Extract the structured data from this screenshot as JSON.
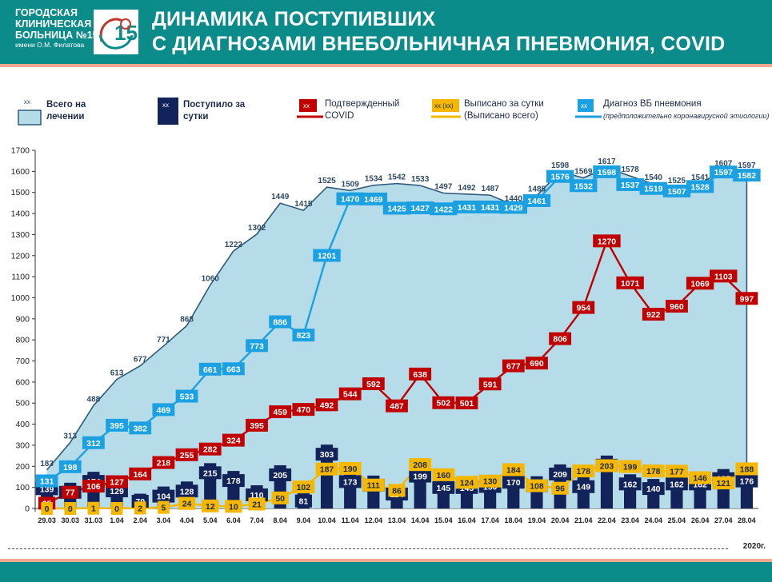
{
  "header": {
    "org_line1": "ГОРОДСКАЯ",
    "org_line2": "КЛИНИЧЕСКАЯ",
    "org_line3": "БОЛЬНИЦА №15",
    "org_line4": "имени О.М. Филатова",
    "title_line1": "ДИНАМИКА ПОСТУПИВШИХ",
    "title_line2": "С ДИАГНОЗАМИ ВНЕБОЛЬНИЧНАЯ ПНЕВМОНИЯ, COVID"
  },
  "legend": {
    "total": {
      "marker": "xx",
      "line1": "Всего на",
      "line2": "лечении"
    },
    "admitted": {
      "marker": "xx",
      "line1": "Поступило за",
      "line2": "сутки"
    },
    "covid": {
      "marker": "xx",
      "line1": "Подтвержденный",
      "line2": "COVID"
    },
    "discharged": {
      "marker": "xx (xx)",
      "line1": "Выписано за сутки",
      "line2": "(Выписано всего)"
    },
    "pneumonia": {
      "marker": "xx",
      "line1": "Диагноз ВБ пневмония",
      "line2": "(предположительно коронавирусной этиологии)"
    }
  },
  "year_label": "2020г.",
  "colors": {
    "header": "#0b8c8a",
    "area": "#b5dce8",
    "area_line": "#2e5a7a",
    "admitted": "#12235a",
    "covid": "#c00000",
    "discharged": "#f5b700",
    "pneumonia": "#1ba1e2"
  },
  "chart_data": {
    "type": "bar",
    "categories": [
      "29.03",
      "30.03",
      "31.03",
      "1.04",
      "2.04",
      "3.04",
      "4.04",
      "5.04",
      "6.04",
      "7.04",
      "8.04",
      "9.04",
      "10.04",
      "11.04",
      "12.04",
      "13.04",
      "14.04",
      "15.04",
      "16.04",
      "17.04",
      "18.04",
      "19.04",
      "20.04",
      "21.04",
      "22.04",
      "23.04",
      "24.04",
      "25.04",
      "26.04",
      "27.04",
      "28.04"
    ],
    "ylim": [
      0,
      1700
    ],
    "yticks": [
      0,
      100,
      200,
      300,
      400,
      500,
      600,
      700,
      800,
      900,
      1000,
      1100,
      1200,
      1300,
      1400,
      1500,
      1600,
      1700
    ],
    "grid": false,
    "series": [
      {
        "name": "Всего на лечении",
        "kind": "area",
        "values": [
          183,
          313,
          488,
          613,
          677,
          771,
          868,
          1060,
          1222,
          1302,
          1449,
          1415,
          1525,
          1509,
          1534,
          1542,
          1533,
          1497,
          1492,
          1487,
          1440,
          1485,
          1598,
          1569,
          1617,
          1578,
          1540,
          1525,
          1541,
          1607,
          1597
        ]
      },
      {
        "name": "Поступило за сутки",
        "kind": "bar",
        "values": [
          139,
          122,
          174,
          129,
          70,
          104,
          128,
          215,
          178,
          110,
          205,
          81,
          303,
          173,
          156,
          114,
          199,
          145,
          145,
          150,
          170,
          153,
          209,
          149,
          251,
          162,
          140,
          162,
          162,
          187,
          176
        ]
      },
      {
        "name": "Подтвержденный COVID",
        "kind": "line",
        "values": [
          25,
          77,
          106,
          127,
          164,
          218,
          255,
          282,
          324,
          395,
          459,
          470,
          492,
          544,
          592,
          487,
          638,
          502,
          501,
          591,
          677,
          690,
          806,
          954,
          1270,
          1071,
          922,
          960,
          1069,
          1103,
          997
        ]
      },
      {
        "name": "Выписано за сутки",
        "kind": "line",
        "values": [
          0,
          0,
          1,
          0,
          2,
          5,
          24,
          12,
          10,
          21,
          50,
          102,
          187,
          190,
          111,
          86,
          208,
          160,
          124,
          130,
          184,
          108,
          96,
          178,
          203,
          199,
          178,
          177,
          146,
          121,
          188
        ]
      },
      {
        "name": "Диагноз ВБ пневмония",
        "kind": "line",
        "values": [
          131,
          198,
          312,
          395,
          382,
          469,
          533,
          661,
          663,
          773,
          886,
          823,
          1201,
          1470,
          1469,
          1425,
          1427,
          1422,
          1431,
          1431,
          1429,
          1461,
          1576,
          1532,
          1598,
          1537,
          1519,
          1507,
          1528,
          1597,
          1582
        ]
      }
    ]
  }
}
